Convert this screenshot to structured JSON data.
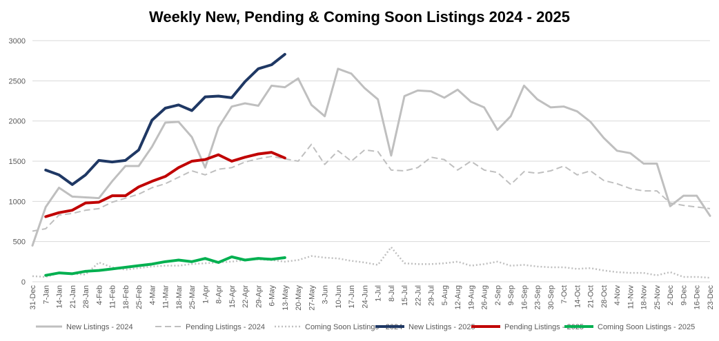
{
  "chart_data": {
    "type": "line",
    "title": "Weekly New, Pending & Coming Soon Listings 2024 - 2025",
    "xlabel": "",
    "ylabel": "",
    "ylim": [
      0,
      3000
    ],
    "yticks": [
      0,
      500,
      1000,
      1500,
      2000,
      2500,
      3000
    ],
    "grid": "horizontal",
    "legend_position": "bottom",
    "categories": [
      "31-Dec",
      "7-Jan",
      "14-Jan",
      "21-Jan",
      "28-Jan",
      "4-Feb",
      "11-Feb",
      "18-Feb",
      "25-Feb",
      "4-Mar",
      "11-Mar",
      "18-Mar",
      "25-Mar",
      "1-Apr",
      "8-Apr",
      "15-Apr",
      "22-Apr",
      "29-Apr",
      "6-May",
      "13-May",
      "20-May",
      "27-May",
      "3-Jun",
      "10-Jun",
      "17-Jun",
      "24-Jun",
      "1-Jul",
      "8-Jul",
      "15-Jul",
      "22-Jul",
      "29-Jul",
      "5-Aug",
      "12-Aug",
      "19-Aug",
      "26-Aug",
      "2-Sep",
      "9-Sep",
      "16-Sep",
      "23-Sep",
      "30-Sep",
      "7-Oct",
      "14-Oct",
      "21-Oct",
      "28-Oct",
      "4-Nov",
      "11-Nov",
      "18-Nov",
      "25-Nov",
      "2-Dec",
      "9-Dec",
      "16-Dec",
      "23-Dec"
    ],
    "series": [
      {
        "name": "New Listings - 2024",
        "color": "#bfbfbf",
        "style": "solid",
        "width": 3,
        "values": [
          450,
          930,
          1170,
          1060,
          1050,
          1040,
          1250,
          1440,
          1440,
          1680,
          1980,
          1990,
          1800,
          1420,
          1920,
          2180,
          2220,
          2190,
          2440,
          2420,
          2530,
          2200,
          2060,
          2650,
          2590,
          2410,
          2270,
          1570,
          2310,
          2380,
          2370,
          2290,
          2390,
          2240,
          2170,
          1890,
          2060,
          2440,
          2270,
          2170,
          2180,
          2120,
          1990,
          1790,
          1630,
          1600,
          1470,
          1470,
          940,
          1070,
          1070,
          820
        ]
      },
      {
        "name": "Pending Listings - 2024",
        "color": "#bfbfbf",
        "style": "dashed",
        "width": 2,
        "values": [
          630,
          660,
          830,
          850,
          890,
          910,
          990,
          1040,
          1090,
          1170,
          1220,
          1300,
          1380,
          1330,
          1400,
          1420,
          1490,
          1530,
          1560,
          1530,
          1500,
          1710,
          1460,
          1630,
          1500,
          1640,
          1620,
          1390,
          1380,
          1420,
          1550,
          1520,
          1390,
          1500,
          1390,
          1360,
          1210,
          1370,
          1350,
          1380,
          1440,
          1330,
          1380,
          1260,
          1220,
          1160,
          1130,
          1130,
          980,
          950,
          930,
          910
        ]
      },
      {
        "name": "Coming Soon Listings - 2024",
        "color": "#bfbfbf",
        "style": "dotted",
        "width": 2.5,
        "values": [
          70,
          60,
          110,
          100,
          90,
          240,
          180,
          150,
          170,
          190,
          200,
          200,
          220,
          230,
          240,
          250,
          270,
          280,
          270,
          250,
          270,
          320,
          300,
          290,
          260,
          240,
          210,
          430,
          230,
          220,
          220,
          230,
          250,
          200,
          220,
          250,
          200,
          210,
          190,
          180,
          180,
          160,
          170,
          140,
          120,
          110,
          110,
          80,
          120,
          60,
          60,
          50
        ]
      },
      {
        "name": "New Listings - 2025",
        "color": "#1f3864",
        "style": "solid",
        "width": 4,
        "values": [
          null,
          1390,
          1330,
          1210,
          1330,
          1510,
          1490,
          1510,
          1640,
          2010,
          2160,
          2200,
          2130,
          2300,
          2310,
          2290,
          2490,
          2650,
          2700,
          2830,
          null,
          null,
          null,
          null,
          null,
          null,
          null,
          null,
          null,
          null,
          null,
          null,
          null,
          null,
          null,
          null,
          null,
          null,
          null,
          null,
          null,
          null,
          null,
          null,
          null,
          null,
          null,
          null,
          null,
          null,
          null,
          null
        ]
      },
      {
        "name": "Pending Listings - 2025",
        "color": "#c00000",
        "style": "solid",
        "width": 4,
        "values": [
          null,
          810,
          860,
          890,
          980,
          990,
          1070,
          1070,
          1180,
          1250,
          1310,
          1420,
          1500,
          1520,
          1580,
          1500,
          1550,
          1590,
          1610,
          1540,
          null,
          null,
          null,
          null,
          null,
          null,
          null,
          null,
          null,
          null,
          null,
          null,
          null,
          null,
          null,
          null,
          null,
          null,
          null,
          null,
          null,
          null,
          null,
          null,
          null,
          null,
          null,
          null,
          null,
          null,
          null,
          null
        ]
      },
      {
        "name": "Coming Soon Listings - 2025",
        "color": "#00b050",
        "style": "solid",
        "width": 4,
        "values": [
          null,
          80,
          110,
          100,
          130,
          140,
          160,
          180,
          200,
          220,
          250,
          270,
          250,
          290,
          240,
          310,
          270,
          290,
          280,
          300,
          null,
          null,
          null,
          null,
          null,
          null,
          null,
          null,
          null,
          null,
          null,
          null,
          null,
          null,
          null,
          null,
          null,
          null,
          null,
          null,
          null,
          null,
          null,
          null,
          null,
          null,
          null,
          null,
          null,
          null,
          null,
          null
        ]
      }
    ]
  }
}
